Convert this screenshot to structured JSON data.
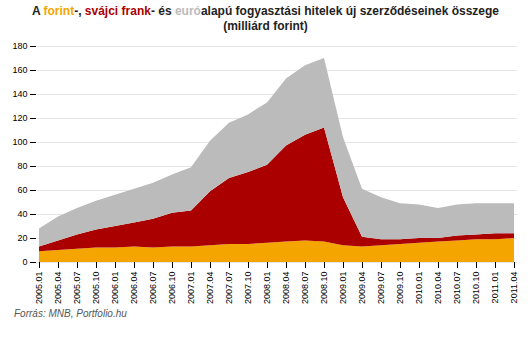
{
  "chart_data": {
    "type": "area",
    "stacked": true,
    "title": "A forint-, svájci frank- és euróalapú fogyasztási hitelek új szerződéseinek összege (milliárd forint)",
    "source": "Forrás: MNB, Portfolio.hu",
    "categories": [
      "2005.01",
      "2005.04",
      "2005.07",
      "2005.10",
      "2006.01",
      "2006.04",
      "2006.07",
      "2006.10",
      "2007.01",
      "2007.04",
      "2007.07",
      "2007.10",
      "2008.01",
      "2008.04",
      "2008.07",
      "2008.10",
      "2009.01",
      "2009.04",
      "2009.07",
      "2009.10",
      "2010.01",
      "2010.04",
      "2010.07",
      "2010.10",
      "2011.01",
      "2011.04"
    ],
    "series": [
      {
        "name": "forint",
        "color": "#F5A500",
        "values": [
          9,
          10,
          11,
          12,
          12,
          13,
          12,
          13,
          13,
          14,
          15,
          15,
          16,
          17,
          18,
          17,
          14,
          13,
          14,
          15,
          16,
          17,
          18,
          19,
          19,
          20
        ]
      },
      {
        "name": "svájci frank",
        "color": "#AA0000",
        "values": [
          4,
          8,
          12,
          15,
          18,
          20,
          24,
          28,
          30,
          45,
          55,
          60,
          65,
          80,
          88,
          95,
          40,
          8,
          5,
          4,
          4,
          3,
          4,
          4,
          5,
          4
        ]
      },
      {
        "name": "euró",
        "color": "#BBBBBB",
        "values": [
          15,
          20,
          22,
          24,
          26,
          28,
          30,
          32,
          36,
          42,
          46,
          48,
          52,
          56,
          58,
          58,
          50,
          40,
          35,
          30,
          28,
          25,
          26,
          26,
          25,
          25
        ]
      }
    ],
    "ylim": [
      0,
      180
    ],
    "yticks": [
      0,
      20,
      40,
      60,
      80,
      100,
      120,
      140,
      160,
      180
    ],
    "grid": true
  }
}
